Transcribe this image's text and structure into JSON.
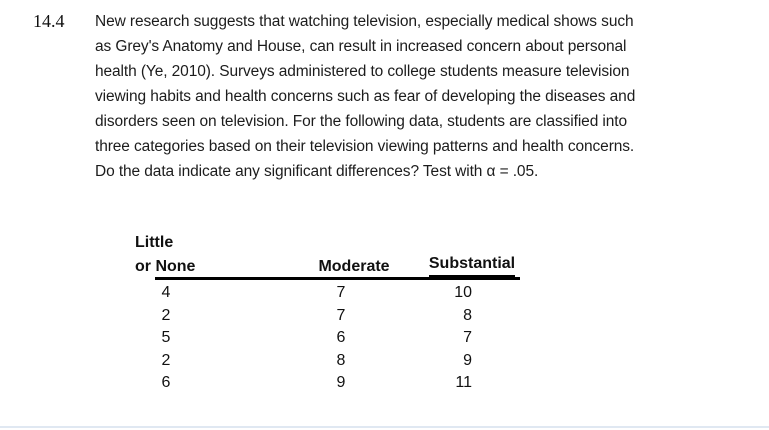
{
  "problem": {
    "number": "14.4",
    "lines": [
      "New research suggests that watching television, especially medical shows such",
      "as Grey's Anatomy and House, can result in increased concern about personal",
      "health (Ye, 2010). Surveys administered to college students measure television",
      "viewing habits and health concerns such as fear of developing the diseases and",
      "disorders seen on television. For the following data, students are classified into",
      "three categories based on their television viewing patterns and health concerns.",
      "Do the data indicate any significant differences? Test with α = .05."
    ]
  },
  "table": {
    "col1_header_line1": "Little",
    "col1_header_prefix": "or ",
    "col1_header_underlined": "None",
    "col2_header": "Moderate",
    "col3_header": "Substantial",
    "rows": [
      [
        "4",
        "7",
        "10"
      ],
      [
        "2",
        "7",
        "8"
      ],
      [
        "5",
        "6",
        "7"
      ],
      [
        "2",
        "8",
        "9"
      ],
      [
        "6",
        "9",
        "11"
      ]
    ]
  },
  "colors": {
    "text": "#1c1c1c",
    "header_rule": "#000000",
    "bottom_divider": "#e0e8f2"
  }
}
